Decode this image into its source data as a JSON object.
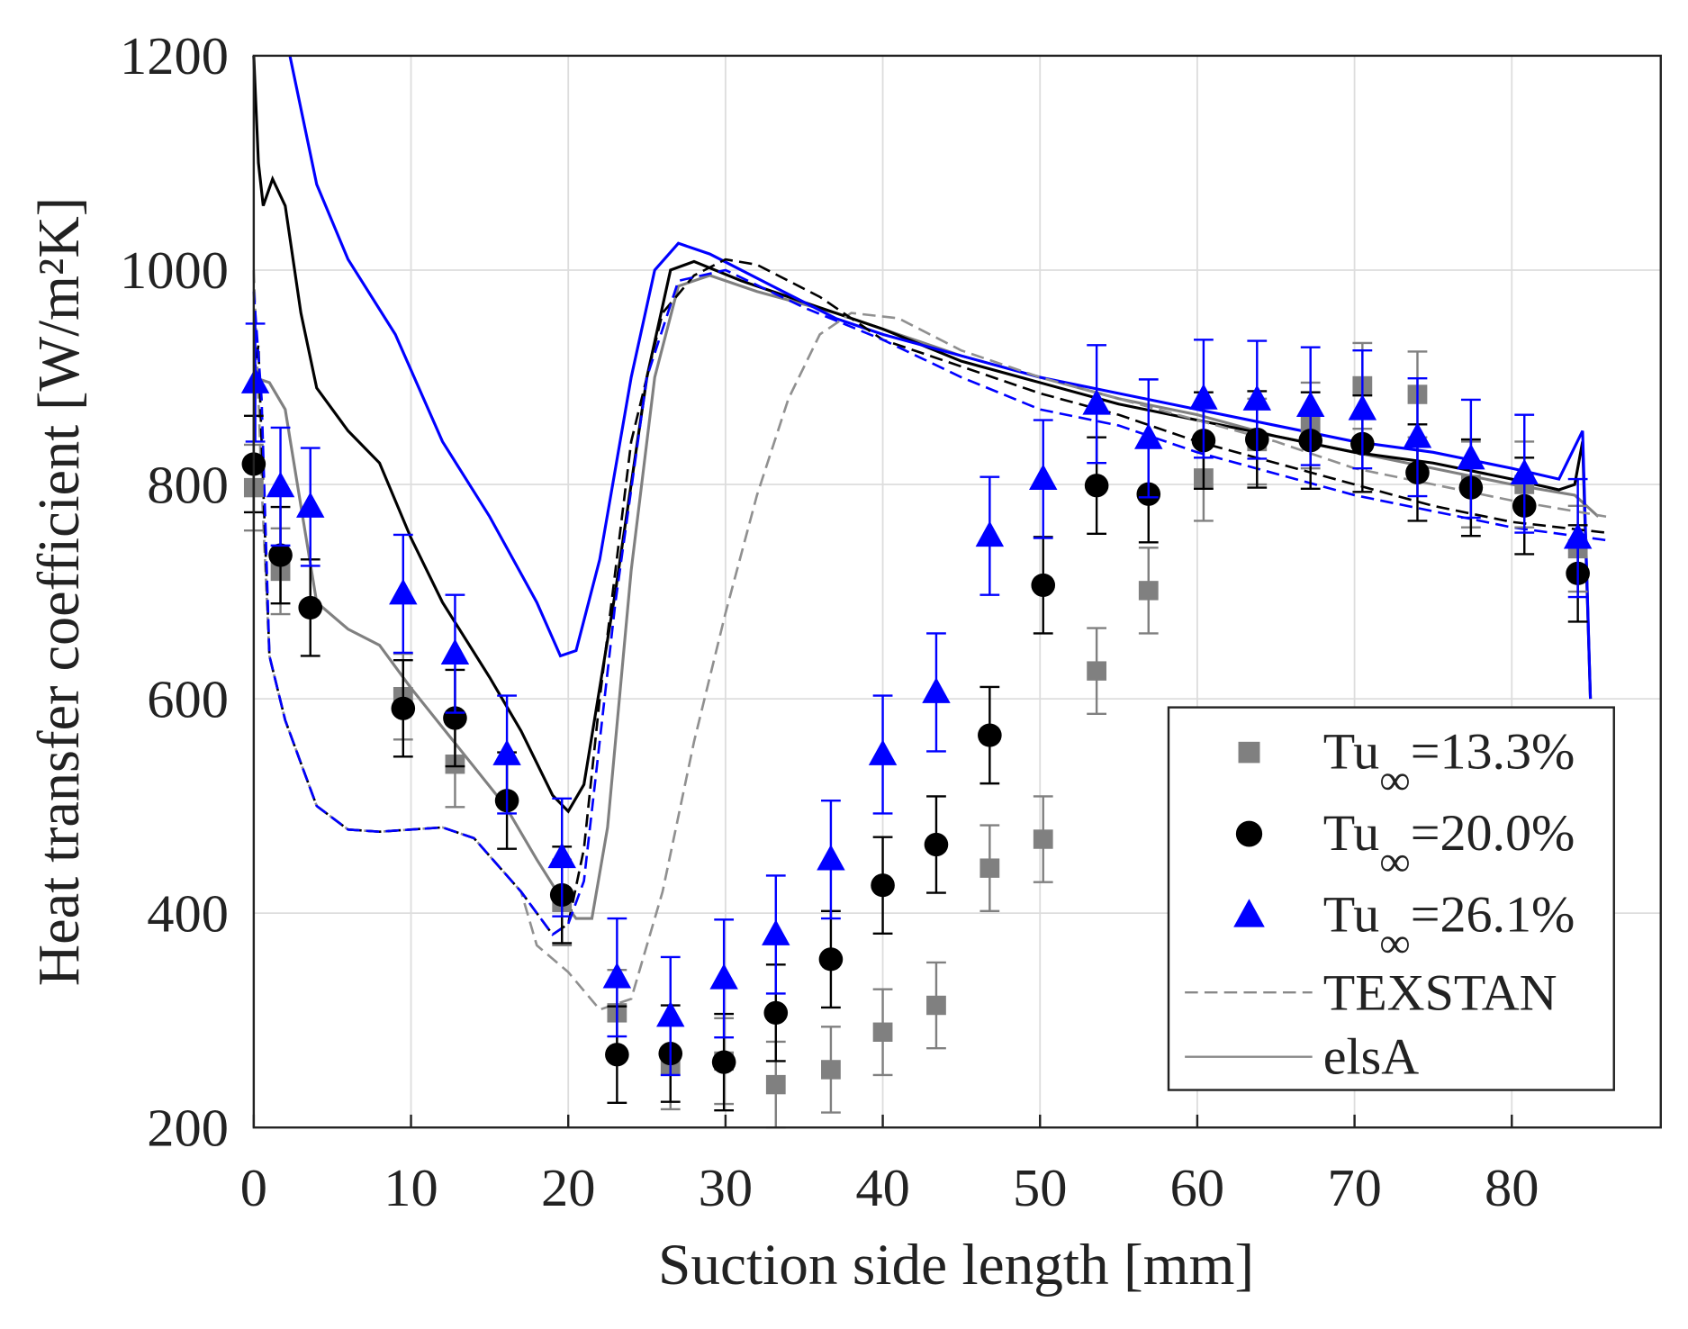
{
  "chart_data": {
    "type": "scatter",
    "title": "",
    "xlabel": "Suction side length [mm]",
    "ylabel": "Heat transfer coefficient [W/m²K]",
    "xlim": [
      0,
      90
    ],
    "ylim": [
      200,
      1200
    ],
    "xticks": [
      0,
      10,
      20,
      30,
      40,
      50,
      60,
      70,
      80
    ],
    "yticks": [
      200,
      400,
      600,
      800,
      1000,
      1200
    ],
    "grid": true,
    "legend_position": "lower-right",
    "series": [
      {
        "name": "Tu∞=13.3%",
        "label_main": "Tu",
        "label_sub": "∞",
        "label_rest": "=13.3%",
        "kind": "marker",
        "marker": "square",
        "color": "#808080",
        "error": 40,
        "x": [
          0,
          1.7,
          9.5,
          12.8,
          19.6,
          23.1,
          26.5,
          29.9,
          33.2,
          36.7,
          40,
          43.4,
          46.8,
          50.2,
          53.6,
          56.9,
          60.4,
          63.8,
          67.2,
          70.5,
          74,
          77.4,
          80.8,
          84.2
        ],
        "y": [
          797,
          719,
          602,
          539,
          410,
          307,
          257,
          262,
          240,
          254,
          289,
          314,
          442,
          469,
          626,
          701,
          806,
          840,
          855,
          892,
          884,
          800,
          800,
          740
        ]
      },
      {
        "name": "Tu∞=20.0%",
        "label_main": "Tu",
        "label_sub": "∞",
        "label_rest": "=20.0%",
        "kind": "marker",
        "marker": "circle",
        "color": "#000000",
        "error": 45,
        "x": [
          0,
          1.7,
          3.6,
          9.5,
          12.8,
          16.1,
          19.6,
          23.1,
          26.5,
          29.9,
          33.2,
          36.7,
          40,
          43.4,
          46.8,
          50.2,
          53.6,
          56.9,
          60.4,
          63.8,
          67.2,
          70.5,
          74,
          77.4,
          80.8,
          84.2
        ],
        "y": [
          819,
          734,
          685,
          591,
          582,
          505,
          417,
          268,
          269,
          261,
          307,
          357,
          426,
          464,
          566,
          706,
          799,
          791,
          841,
          842,
          841,
          838,
          811,
          797,
          780,
          717
        ]
      },
      {
        "name": "Tu∞=26.1%",
        "label_main": "Tu",
        "label_sub": "∞",
        "label_rest": "=26.1%",
        "kind": "marker",
        "marker": "triangle",
        "color": "#0000ff",
        "error": 55,
        "x": [
          0.1,
          1.7,
          3.6,
          9.5,
          12.8,
          16.1,
          19.6,
          23.1,
          26.5,
          29.9,
          33.2,
          36.7,
          40,
          43.4,
          46.8,
          50.2,
          53.6,
          56.9,
          60.4,
          63.8,
          67.2,
          70.5,
          74,
          77.4,
          80.8,
          84.2
        ],
        "y": [
          895,
          798,
          779,
          698,
          642,
          548,
          452,
          340,
          304,
          339,
          380,
          450,
          548,
          606,
          752,
          805,
          875,
          843,
          880,
          879,
          873,
          870,
          844,
          824,
          810,
          750
        ]
      }
    ],
    "lines": [
      {
        "name": "elsA Tu 13.3%",
        "style": "solid",
        "color": "#808080",
        "x": [
          0,
          1,
          2,
          3,
          4,
          6,
          8,
          10,
          13,
          16,
          18,
          19.5,
          20.5,
          21.5,
          22.5,
          24,
          25.5,
          27,
          29,
          32,
          37,
          40,
          45,
          50,
          55,
          60,
          65,
          70,
          75,
          80,
          84,
          85.5
        ],
        "y": [
          900,
          895,
          870,
          780,
          690,
          665,
          650,
          610,
          555,
          500,
          450,
          415,
          395,
          395,
          480,
          720,
          900,
          985,
          995,
          980,
          960,
          945,
          920,
          900,
          880,
          865,
          845,
          830,
          815,
          800,
          790,
          770
        ]
      },
      {
        "name": "elsA Tu 20.0%",
        "style": "solid",
        "color": "#000000",
        "x": [
          0,
          0.3,
          0.6,
          1.2,
          2,
          3,
          4,
          6,
          8,
          10,
          12,
          15,
          17,
          19,
          20,
          21,
          23,
          25,
          26.5,
          28,
          31,
          35,
          40,
          45,
          50,
          55,
          60,
          65,
          70,
          75,
          80,
          83,
          84,
          84.5,
          85
        ],
        "y": [
          1200,
          1100,
          1060,
          1085,
          1060,
          960,
          890,
          850,
          820,
          750,
          690,
          620,
          570,
          510,
          495,
          520,
          700,
          900,
          1000,
          1008,
          990,
          970,
          945,
          915,
          895,
          875,
          860,
          845,
          830,
          820,
          805,
          795,
          800,
          840,
          600
        ]
      },
      {
        "name": "elsA Tu 26.1%",
        "style": "solid",
        "color": "#0000ff",
        "x": [
          2.3,
          4,
          6,
          9,
          12,
          15,
          18,
          19.5,
          20.5,
          22,
          24,
          25.5,
          27,
          29,
          33,
          37,
          40,
          45,
          50,
          55,
          60,
          65,
          70,
          75,
          80,
          83,
          84.5,
          85
        ],
        "y": [
          1200,
          1080,
          1010,
          940,
          840,
          770,
          690,
          640,
          645,
          730,
          900,
          1000,
          1025,
          1015,
          985,
          955,
          940,
          920,
          900,
          885,
          870,
          855,
          840,
          830,
          815,
          805,
          850,
          600
        ]
      },
      {
        "name": "TEXSTAN Tu 13.3%",
        "style": "dashed",
        "color": "#909090",
        "x": [
          0,
          0.5,
          1,
          2,
          3,
          4,
          6,
          8,
          10,
          12,
          14,
          17,
          18,
          20,
          22,
          24,
          26,
          28,
          30,
          32,
          34,
          36,
          38,
          41,
          45,
          50,
          55,
          60,
          65,
          70,
          75,
          80,
          86
        ],
        "y": [
          1000,
          800,
          640,
          580,
          540,
          500,
          478,
          476,
          478,
          480,
          470,
          420,
          370,
          345,
          310,
          320,
          420,
          560,
          680,
          790,
          880,
          940,
          960,
          955,
          925,
          900,
          880,
          860,
          840,
          815,
          800,
          785,
          770
        ]
      },
      {
        "name": "TEXSTAN Tu 20.0%",
        "style": "dashed",
        "color": "#000000",
        "x": [
          0,
          0.3,
          0.5,
          1,
          2,
          3,
          4,
          6,
          8,
          10,
          12,
          14,
          17,
          19,
          20,
          21,
          22,
          24,
          26,
          28,
          30,
          32,
          36,
          40,
          45,
          50,
          55,
          60,
          65,
          70,
          75,
          80,
          86
        ],
        "y": [
          900,
          930,
          840,
          640,
          580,
          540,
          500,
          478,
          476,
          478,
          480,
          470,
          420,
          380,
          390,
          460,
          600,
          840,
          960,
          995,
          1010,
          1005,
          975,
          935,
          910,
          885,
          865,
          840,
          820,
          800,
          780,
          765,
          755
        ]
      },
      {
        "name": "TEXSTAN Tu 26.1%",
        "style": "dashed",
        "color": "#0000ff",
        "x": [
          0,
          0.5,
          1,
          2,
          3,
          4,
          6,
          8,
          10,
          12,
          14,
          17,
          19,
          20,
          21,
          23,
          25,
          27,
          30,
          35,
          40,
          45,
          50,
          55,
          60,
          65,
          70,
          75,
          80,
          86
        ],
        "y": [
          980,
          880,
          640,
          580,
          540,
          500,
          478,
          476,
          478,
          480,
          470,
          420,
          380,
          390,
          430,
          690,
          900,
          990,
          1000,
          965,
          935,
          900,
          870,
          855,
          830,
          810,
          790,
          775,
          760,
          748
        ]
      }
    ],
    "legend": [
      {
        "label": "TEXSTAN",
        "style": "dashed",
        "color": "#888888"
      },
      {
        "label": "elsA",
        "style": "solid",
        "color": "#888888"
      }
    ]
  }
}
